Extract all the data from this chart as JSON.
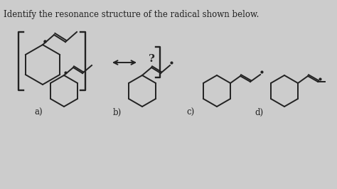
{
  "title_text": "Identify the resonance structure of the radical shown below.",
  "bg_color": "#cccccc",
  "line_color": "#222222",
  "line_width": 1.4,
  "question_mark": "?",
  "labels": [
    "a)",
    "b)",
    "c)",
    "d)"
  ],
  "label_fontsize": 8.5,
  "title_fontsize": 8.5
}
